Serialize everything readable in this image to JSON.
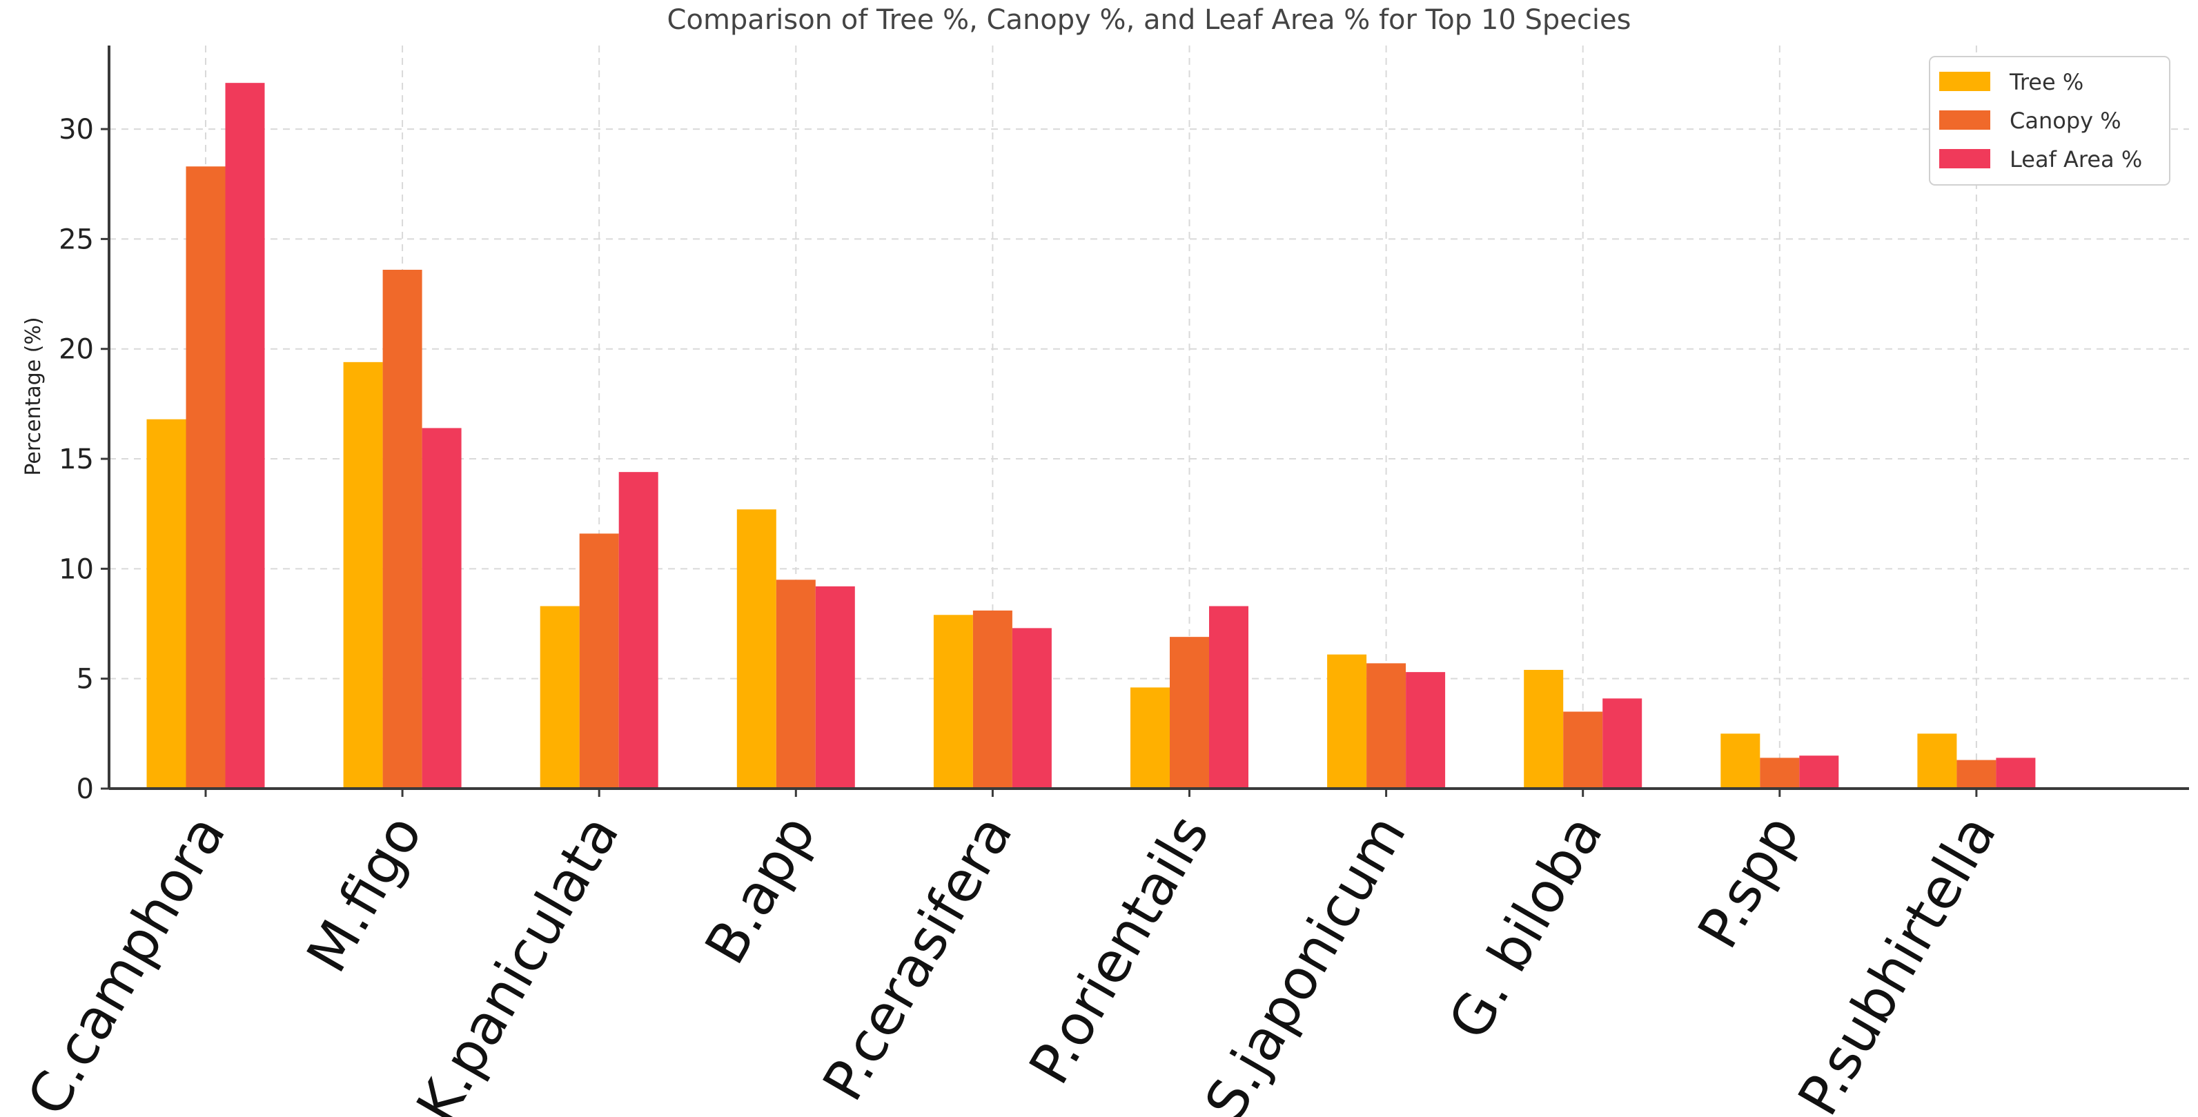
{
  "chart_data": {
    "type": "bar",
    "title": "Comparison of Tree %, Canopy %, and Leaf Area % for Top 10 Species",
    "xlabel": "",
    "ylabel": "Percentage (%)",
    "ylim": [
      0,
      33.8
    ],
    "yticks": [
      0,
      5,
      10,
      15,
      20,
      25,
      30
    ],
    "grid": true,
    "legend_position": "top-right",
    "categories": [
      "C.camphora",
      "M.figo",
      "K.paniculata",
      "B.app",
      "P.cerasifera",
      "P.orientails",
      "S.japonicum",
      "G. biloba",
      "P.spp",
      "P.subhirtella"
    ],
    "series": [
      {
        "name": "Tree %",
        "color": "#FFB000",
        "values": [
          16.8,
          19.4,
          8.3,
          12.7,
          7.9,
          4.6,
          6.1,
          5.4,
          2.5,
          2.5
        ]
      },
      {
        "name": "Canopy %",
        "color": "#F0692A",
        "values": [
          28.3,
          23.6,
          11.6,
          9.5,
          8.1,
          6.9,
          5.7,
          3.5,
          1.4,
          1.3
        ]
      },
      {
        "name": "Leaf Area %",
        "color": "#F03A5A",
        "values": [
          32.1,
          16.4,
          14.4,
          9.2,
          7.3,
          8.3,
          5.3,
          4.1,
          1.5,
          1.4
        ]
      }
    ]
  }
}
